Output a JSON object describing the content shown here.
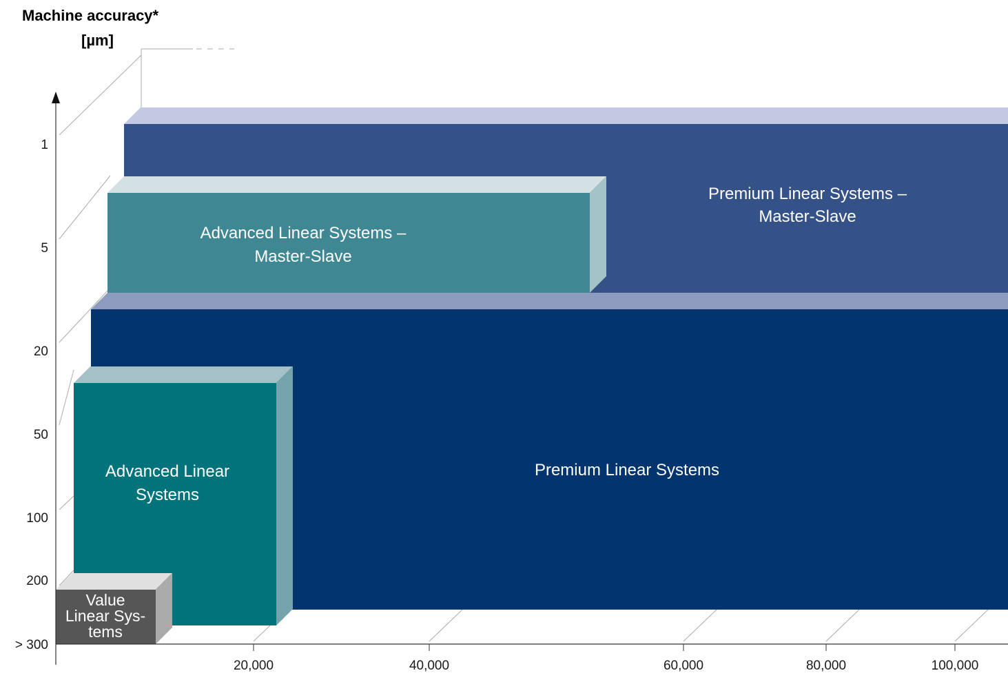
{
  "chart_data": {
    "type": "bar",
    "ylabel_line1": "Machine accuracy*",
    "ylabel_line2": "[µm]",
    "y_ticks": [
      "1",
      "5",
      "20",
      "50",
      "100",
      "200",
      "> 300"
    ],
    "x_ticks": [
      "20,000",
      "40,000",
      "60,000",
      "80,000",
      "100,000"
    ],
    "series": [
      {
        "name": "Premium Linear Systems – Master-Slave",
        "lines": [
          "Premium Linear Systems –",
          "Master-Slave"
        ],
        "front": "#345288",
        "top": "#c4c9e3",
        "side": "#345288"
      },
      {
        "name": "Advanced Linear Systems – Master-Slave",
        "lines": [
          "Advanced Linear Systems –",
          "Master-Slave"
        ],
        "front": "#3f8893",
        "top": "#d3e0e4",
        "side": "#a4c3c6"
      },
      {
        "name": "Premium Linear Systems",
        "lines": [
          "Premium Linear Systems"
        ],
        "front": "#02346d",
        "top": "#8c9bbe",
        "side": "#02346d"
      },
      {
        "name": "Advanced Linear Systems",
        "lines": [
          "Advanced Linear",
          "Systems"
        ],
        "front": "#01737b",
        "top": "#a3c1c6",
        "side": "#75a3ab"
      },
      {
        "name": "Value Linear Systems",
        "lines": [
          "Value",
          "Linear Sys-",
          "tems"
        ],
        "front": "#565656",
        "top": "#e0e0e0",
        "side": "#aaaaaa"
      }
    ]
  }
}
